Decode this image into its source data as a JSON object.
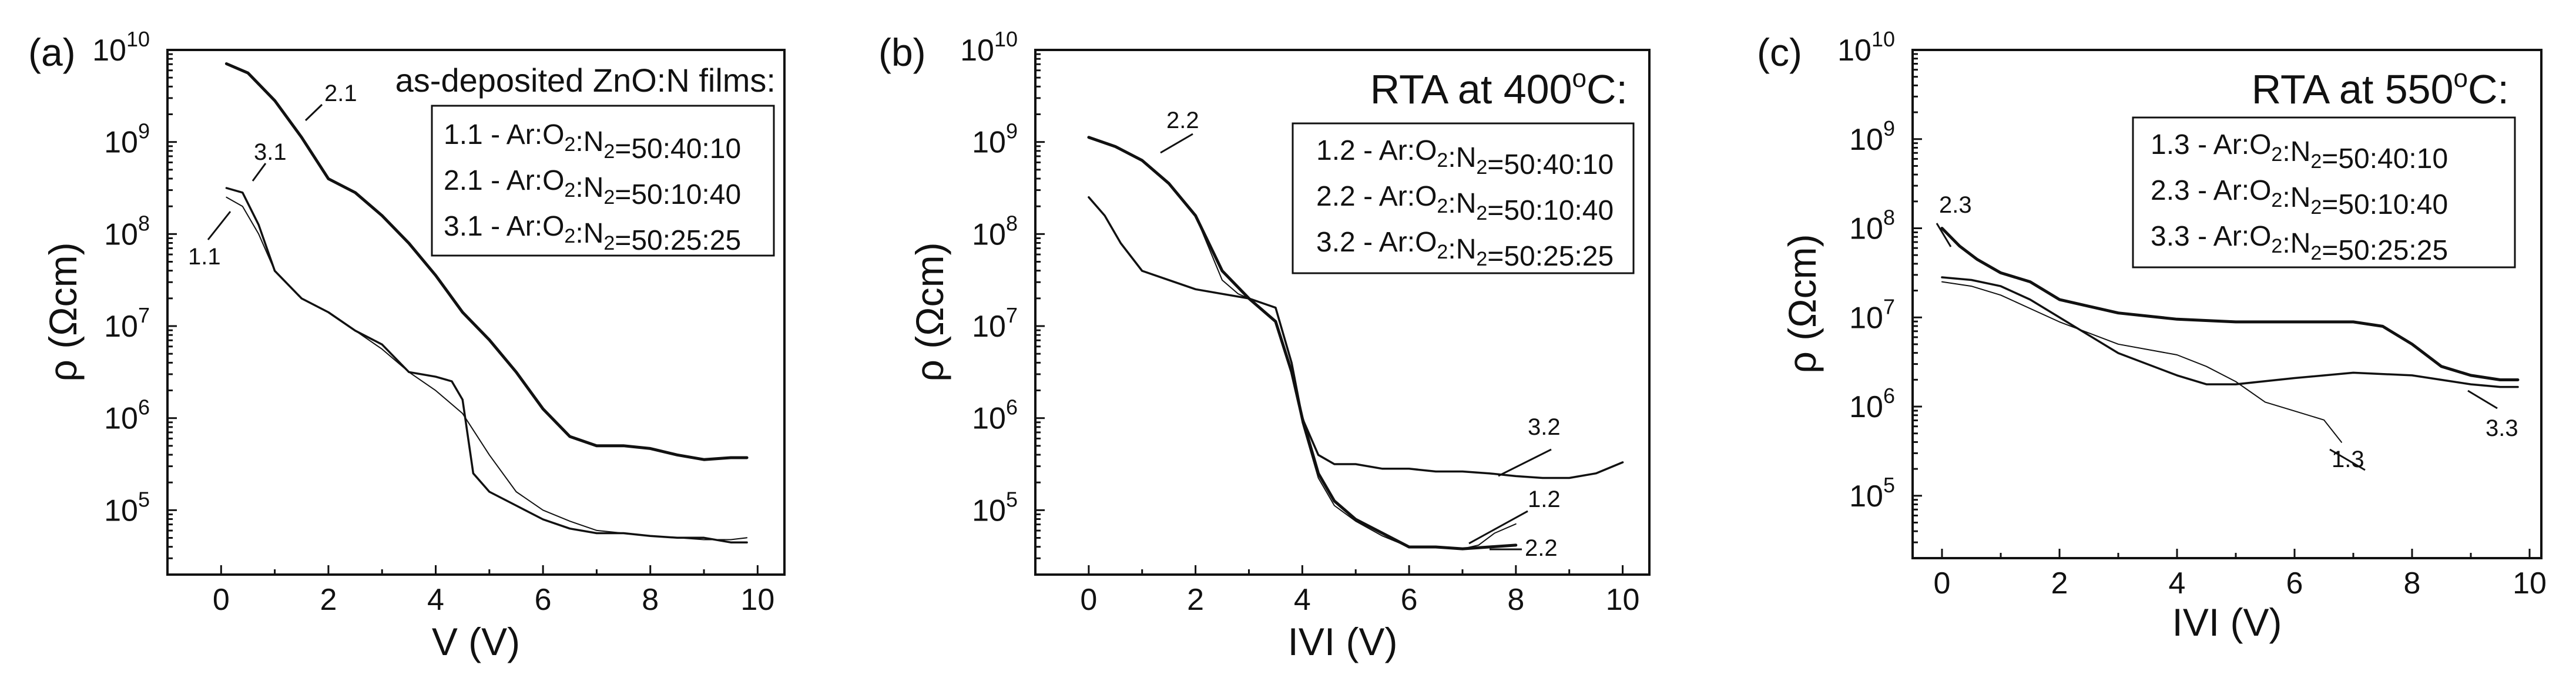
{
  "chart_data": [
    {
      "type": "line",
      "panel_label": "(a)",
      "xlabel": "V (V)",
      "ylabel": "ρ (Ωcm)",
      "xlim": [
        -1,
        10.5
      ],
      "ylim_log10": [
        4.3,
        10
      ],
      "x_ticks": [
        0,
        2,
        4,
        6,
        8,
        10
      ],
      "y_tick_exponents": [
        5,
        6,
        7,
        8,
        9,
        10
      ],
      "y_tick_base": "10",
      "header": "as-deposited ZnO:N films:",
      "legend_entries": [
        {
          "id": "1.1",
          "text": "Ar:O2:N2=50:40:10"
        },
        {
          "id": "2.1",
          "text": "Ar:O2:N2=50:10:40"
        },
        {
          "id": "3.1",
          "text": "Ar:O2:N2=50:25:25"
        }
      ],
      "series": [
        {
          "name": "2.1",
          "width": "thick",
          "x": [
            0.1,
            0.5,
            1.0,
            1.5,
            2.0,
            2.5,
            3.0,
            3.5,
            4.0,
            4.5,
            5.0,
            5.5,
            6.0,
            6.5,
            7.0,
            7.5,
            8.0,
            8.5,
            9.0,
            9.5,
            9.8
          ],
          "log10_rho": [
            9.85,
            9.75,
            9.45,
            9.05,
            8.6,
            8.45,
            8.2,
            7.9,
            7.55,
            7.15,
            6.85,
            6.5,
            6.1,
            5.8,
            5.7,
            5.7,
            5.67,
            5.6,
            5.55,
            5.57,
            5.57
          ]
        },
        {
          "name": "3.1",
          "width": "medium",
          "x": [
            0.1,
            0.4,
            0.7,
            1.0,
            1.5,
            2.0,
            2.5,
            3.0,
            3.5,
            4.0,
            4.3,
            4.5,
            4.7,
            5.0,
            5.5,
            6.0,
            6.5,
            7.0,
            7.5,
            8.0,
            8.5,
            9.0,
            9.5,
            9.8
          ],
          "log10_rho": [
            8.5,
            8.45,
            8.1,
            7.6,
            7.3,
            7.15,
            6.95,
            6.8,
            6.5,
            6.45,
            6.4,
            6.2,
            5.4,
            5.2,
            5.05,
            4.9,
            4.8,
            4.75,
            4.75,
            4.72,
            4.7,
            4.7,
            4.65,
            4.65
          ]
        },
        {
          "name": "1.1",
          "width": "thin",
          "x": [
            0.1,
            0.4,
            0.7,
            1.0,
            1.5,
            2.0,
            2.5,
            3.0,
            3.5,
            4.0,
            4.5,
            5.0,
            5.5,
            6.0,
            6.5,
            7.0,
            7.5,
            8.0,
            8.5,
            9.0,
            9.5,
            9.8
          ],
          "log10_rho": [
            8.4,
            8.3,
            8.0,
            7.6,
            7.3,
            7.15,
            6.95,
            6.75,
            6.5,
            6.3,
            6.05,
            5.6,
            5.2,
            5.0,
            4.88,
            4.78,
            4.75,
            4.72,
            4.7,
            4.68,
            4.68,
            4.7
          ]
        }
      ],
      "annotations": [
        "2.1",
        "3.1",
        "1.1"
      ]
    },
    {
      "type": "line",
      "panel_label": "(b)",
      "xlabel": "IVI (V)",
      "ylabel": "ρ (Ωcm)",
      "xlim": [
        -1,
        10.5
      ],
      "ylim_log10": [
        4.3,
        10
      ],
      "x_ticks": [
        0,
        2,
        4,
        6,
        8,
        10
      ],
      "y_tick_exponents": [
        5,
        6,
        7,
        8,
        9,
        10
      ],
      "y_tick_base": "10",
      "header_prefix": "RTA at 400",
      "header_sup": "o",
      "header_suffix": "C:",
      "legend_entries": [
        {
          "id": "1.2",
          "text": "Ar:O2:N2=50:40:10"
        },
        {
          "id": "2.2",
          "text": "Ar:O2:N2=50:10:40"
        },
        {
          "id": "3.2",
          "text": "Ar:O2:N2=50:25:25"
        }
      ],
      "series": [
        {
          "name": "2.2",
          "width": "thick",
          "x": [
            0.0,
            0.5,
            1.0,
            1.5,
            2.0,
            2.5,
            3.0,
            3.5,
            3.8,
            4.0,
            4.3,
            4.6,
            5.0,
            5.5,
            6.0,
            6.5,
            7.0,
            7.5,
            8.0
          ],
          "log10_rho": [
            9.05,
            8.95,
            8.8,
            8.55,
            8.2,
            7.6,
            7.3,
            7.05,
            6.5,
            6.0,
            5.4,
            5.1,
            4.9,
            4.75,
            4.6,
            4.6,
            4.58,
            4.6,
            4.62
          ]
        },
        {
          "name": "3.2",
          "width": "medium",
          "x": [
            0.0,
            0.3,
            0.6,
            1.0,
            1.5,
            2.0,
            2.5,
            3.0,
            3.5,
            3.8,
            4.0,
            4.3,
            4.6,
            5.0,
            5.5,
            6.0,
            6.5,
            7.0,
            7.5,
            8.0,
            8.5,
            9.0,
            9.5,
            10.0
          ],
          "log10_rho": [
            8.4,
            8.2,
            7.9,
            7.6,
            7.5,
            7.4,
            7.35,
            7.3,
            7.2,
            6.6,
            6.0,
            5.6,
            5.5,
            5.5,
            5.45,
            5.45,
            5.42,
            5.42,
            5.4,
            5.37,
            5.35,
            5.35,
            5.4,
            5.52
          ]
        },
        {
          "name": "1.2",
          "width": "thin",
          "x": [
            0.0,
            0.5,
            1.0,
            1.5,
            2.0,
            2.5,
            2.8,
            3.0,
            3.5,
            3.8,
            4.0,
            4.3,
            4.6,
            5.0,
            5.5,
            6.0,
            6.5,
            7.0,
            7.3,
            7.6,
            8.0
          ],
          "log10_rho": [
            9.05,
            8.95,
            8.8,
            8.55,
            8.2,
            7.5,
            7.35,
            7.3,
            7.05,
            6.5,
            5.95,
            5.35,
            5.05,
            4.88,
            4.72,
            4.6,
            4.6,
            4.58,
            4.62,
            4.75,
            4.85
          ]
        }
      ],
      "annotations": [
        "2.2",
        "3.2",
        "1.2",
        "2.2"
      ]
    },
    {
      "type": "line",
      "panel_label": "(c)",
      "xlabel": "IVI (V)",
      "ylabel": "ρ (Ωcm)",
      "xlim": [
        -0.5,
        10.2
      ],
      "ylim_log10": [
        4.3,
        10
      ],
      "x_ticks": [
        0,
        2,
        4,
        6,
        8,
        10
      ],
      "y_tick_exponents": [
        5,
        6,
        7,
        8,
        9,
        10
      ],
      "y_tick_base": "10",
      "header_prefix": "RTA at 550",
      "header_sup": "o",
      "header_suffix": "C:",
      "legend_entries": [
        {
          "id": "1.3",
          "text": "Ar:O2:N2=50:40:10"
        },
        {
          "id": "2.3",
          "text": "Ar:O2:N2=50:10:40"
        },
        {
          "id": "3.3",
          "text": "Ar:O2:N2=50:25:25"
        }
      ],
      "series": [
        {
          "name": "2.3",
          "width": "thick",
          "x": [
            0.0,
            0.3,
            0.6,
            1.0,
            1.5,
            2.0,
            3.0,
            4.0,
            5.0,
            6.0,
            7.0,
            7.5,
            8.0,
            8.5,
            9.0,
            9.5,
            9.8
          ],
          "log10_rho": [
            8.0,
            7.8,
            7.65,
            7.5,
            7.4,
            7.2,
            7.05,
            6.98,
            6.95,
            6.95,
            6.95,
            6.9,
            6.7,
            6.45,
            6.35,
            6.3,
            6.3
          ]
        },
        {
          "name": "3.3",
          "width": "medium",
          "x": [
            0.0,
            0.5,
            1.0,
            1.5,
            2.0,
            3.0,
            4.0,
            4.5,
            5.0,
            6.0,
            7.0,
            8.0,
            8.5,
            9.0,
            9.5,
            9.8
          ],
          "log10_rho": [
            7.45,
            7.42,
            7.35,
            7.2,
            7.0,
            6.6,
            6.35,
            6.25,
            6.25,
            6.32,
            6.38,
            6.35,
            6.3,
            6.25,
            6.22,
            6.22
          ]
        },
        {
          "name": "1.3",
          "width": "thin",
          "x": [
            0.0,
            0.5,
            1.0,
            1.5,
            2.0,
            3.0,
            4.0,
            4.5,
            5.0,
            5.5,
            6.0,
            6.5,
            6.8
          ],
          "log10_rho": [
            7.4,
            7.35,
            7.25,
            7.1,
            6.95,
            6.7,
            6.58,
            6.45,
            6.28,
            6.05,
            5.95,
            5.85,
            5.6
          ]
        }
      ],
      "annotations": [
        "2.3",
        "1.3",
        "3.3"
      ]
    }
  ]
}
